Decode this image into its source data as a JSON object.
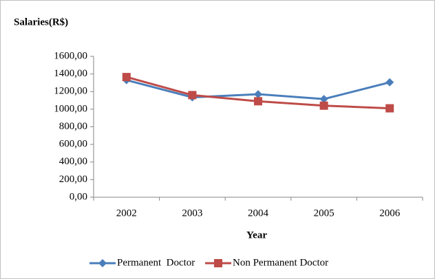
{
  "chart_data": {
    "type": "line",
    "title": "Salaries(R$)",
    "x_label": "Year",
    "categories": [
      "2002",
      "2003",
      "2004",
      "2005",
      "2006"
    ],
    "series": [
      {
        "name": "Permanent  Doctor",
        "color": "#4a7ebb",
        "marker": "diamond",
        "values": [
          1330,
          1135,
          1170,
          1115,
          1305
        ]
      },
      {
        "name": "Non Permanent Doctor",
        "color": "#be4b48",
        "marker": "square",
        "values": [
          1365,
          1160,
          1090,
          1040,
          1010
        ]
      }
    ],
    "ylim": [
      0,
      1600
    ],
    "yticks": [
      {
        "value": 0,
        "label": "0,00"
      },
      {
        "value": 200,
        "label": "200,00"
      },
      {
        "value": 400,
        "label": "400,00"
      },
      {
        "value": 600,
        "label": "600,00"
      },
      {
        "value": 800,
        "label": "800,00"
      },
      {
        "value": 1000,
        "label": "1000,00"
      },
      {
        "value": 1200,
        "label": "1200,00"
      },
      {
        "value": 1400,
        "label": "1400,00"
      },
      {
        "value": 1600,
        "label": "1600,00"
      }
    ],
    "grid": false,
    "legend": "bottom"
  }
}
